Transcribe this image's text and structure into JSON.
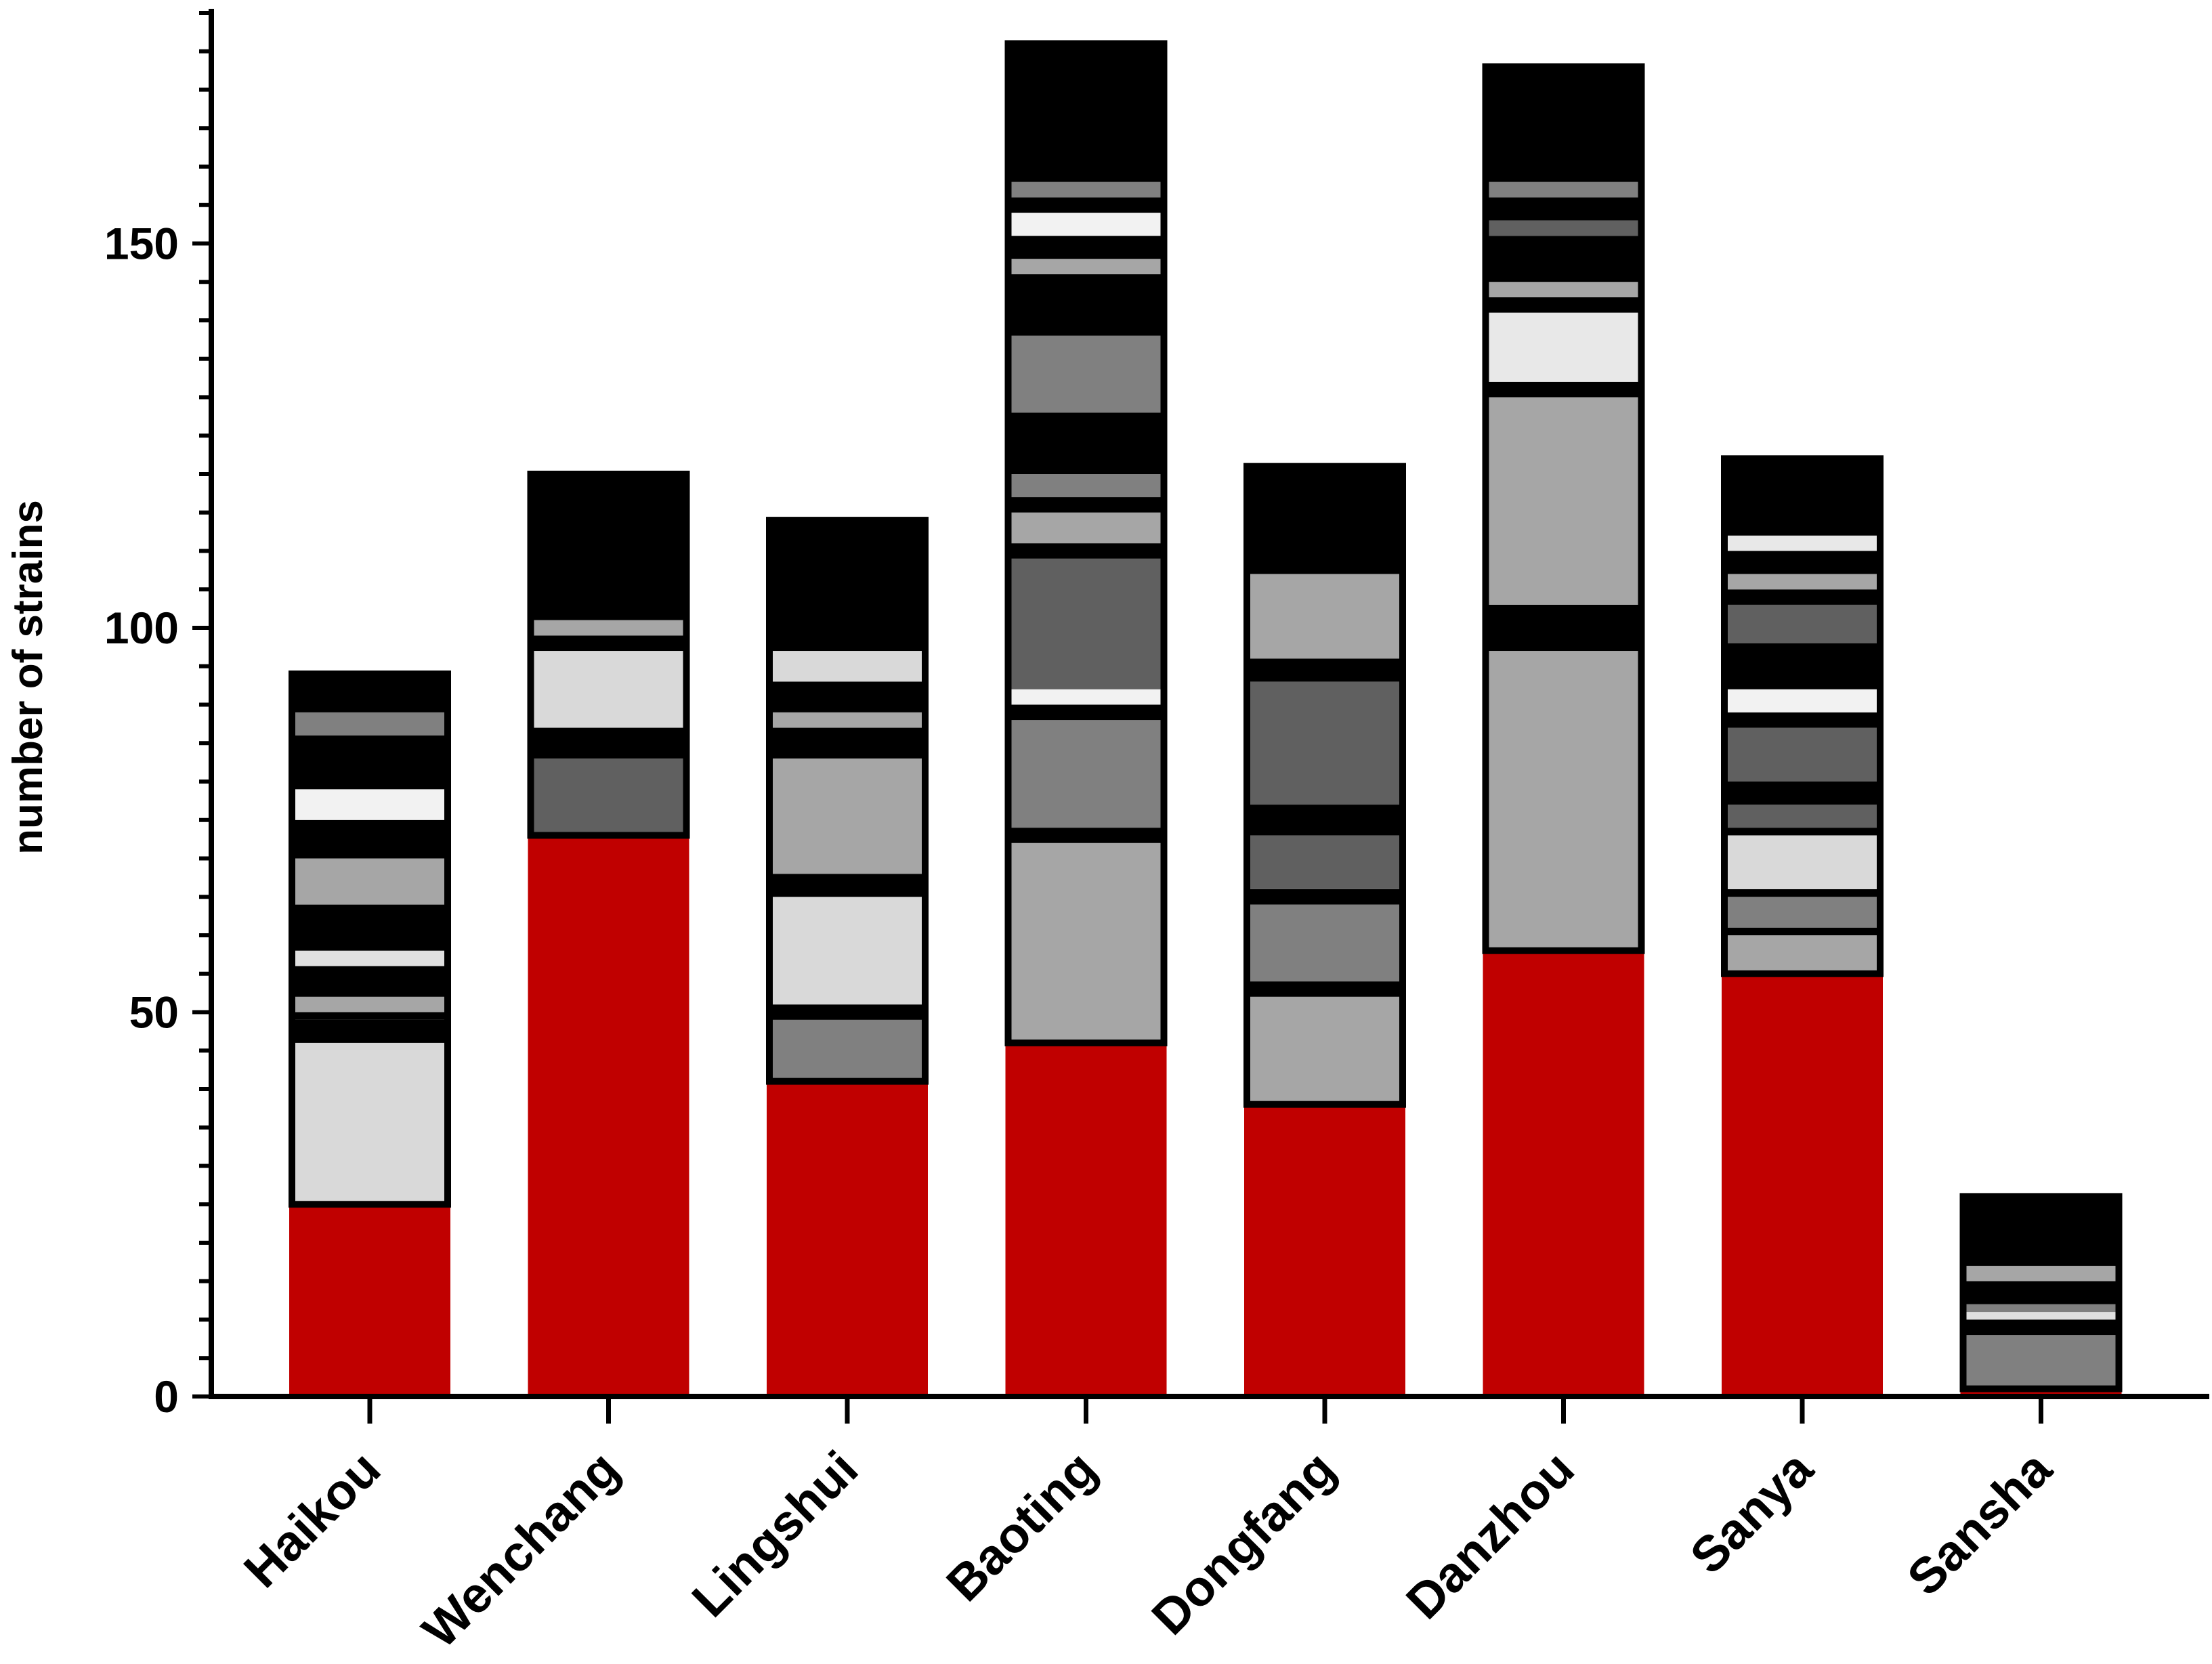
{
  "chart_data": {
    "type": "bar",
    "stacked": true,
    "title": "",
    "xlabel": "",
    "ylabel": "number of strains",
    "ylim": [
      0,
      180
    ],
    "yticks": [
      0,
      50,
      100,
      150
    ],
    "y_minor_step": 5,
    "categories": [
      "Haikou",
      "Wenchang",
      "Lingshui",
      "Baoting",
      "Dongfang",
      "Danzhou",
      "Sanya",
      "Sansha"
    ],
    "totals": [
      94,
      120,
      114,
      176,
      121,
      173,
      122,
      26
    ],
    "series": [
      {
        "name": "red",
        "color": "#c00000",
        "values": [
          25,
          73,
          41,
          46,
          38,
          58,
          55,
          1
        ]
      }
    ],
    "stack_segments": [
      [
        {
          "value": 25,
          "color": "#c00000"
        },
        {
          "value": 21,
          "color": "#d9d9d9"
        },
        {
          "value": 3,
          "color": "#000000"
        },
        {
          "value": 1,
          "color": "#000000"
        },
        {
          "value": 2,
          "color": "#a6a6a6"
        },
        {
          "value": 4,
          "color": "#000000"
        },
        {
          "value": 2,
          "color": "#e0e0e0"
        },
        {
          "value": 6,
          "color": "#000000"
        },
        {
          "value": 6,
          "color": "#a6a6a6"
        },
        {
          "value": 5,
          "color": "#000000"
        },
        {
          "value": 4,
          "color": "#f2f2f2"
        },
        {
          "value": 7,
          "color": "#000000"
        },
        {
          "value": 3,
          "color": "#808080"
        },
        {
          "value": 5,
          "color": "#000000"
        }
      ],
      [
        {
          "value": 73,
          "color": "#c00000"
        },
        {
          "value": 10,
          "color": "#606060"
        },
        {
          "value": 4,
          "color": "#000000"
        },
        {
          "value": 10,
          "color": "#d9d9d9"
        },
        {
          "value": 2,
          "color": "#000000"
        },
        {
          "value": 2,
          "color": "#a6a6a6"
        },
        {
          "value": 19,
          "color": "#000000"
        }
      ],
      [
        {
          "value": 41,
          "color": "#c00000"
        },
        {
          "value": 8,
          "color": "#808080"
        },
        {
          "value": 2,
          "color": "#000000"
        },
        {
          "value": 14,
          "color": "#d9d9d9"
        },
        {
          "value": 3,
          "color": "#000000"
        },
        {
          "value": 15,
          "color": "#a6a6a6"
        },
        {
          "value": 4,
          "color": "#000000"
        },
        {
          "value": 2,
          "color": "#a6a6a6"
        },
        {
          "value": 4,
          "color": "#000000"
        },
        {
          "value": 4,
          "color": "#d9d9d9"
        },
        {
          "value": 17,
          "color": "#000000"
        }
      ],
      [
        {
          "value": 46,
          "color": "#c00000"
        },
        {
          "value": 26,
          "color": "#a6a6a6"
        },
        {
          "value": 2,
          "color": "#000000"
        },
        {
          "value": 14,
          "color": "#808080"
        },
        {
          "value": 2,
          "color": "#000000"
        },
        {
          "value": 2,
          "color": "#f2f2f2"
        },
        {
          "value": 17,
          "color": "#606060"
        },
        {
          "value": 2,
          "color": "#000000"
        },
        {
          "value": 4,
          "color": "#a6a6a6"
        },
        {
          "value": 2,
          "color": "#000000"
        },
        {
          "value": 3,
          "color": "#808080"
        },
        {
          "value": 8,
          "color": "#000000"
        },
        {
          "value": 10,
          "color": "#808080"
        },
        {
          "value": 8,
          "color": "#000000"
        },
        {
          "value": 2,
          "color": "#a6a6a6"
        },
        {
          "value": 3,
          "color": "#000000"
        },
        {
          "value": 3,
          "color": "#f2f2f2"
        },
        {
          "value": 2,
          "color": "#000000"
        },
        {
          "value": 2,
          "color": "#808080"
        },
        {
          "value": 18,
          "color": "#000000"
        }
      ],
      [
        {
          "value": 38,
          "color": "#c00000"
        },
        {
          "value": 14,
          "color": "#a6a6a6"
        },
        {
          "value": 2,
          "color": "#000000"
        },
        {
          "value": 10,
          "color": "#808080"
        },
        {
          "value": 2,
          "color": "#000000"
        },
        {
          "value": 7,
          "color": "#606060"
        },
        {
          "value": 4,
          "color": "#000000"
        },
        {
          "value": 16,
          "color": "#606060"
        },
        {
          "value": 3,
          "color": "#000000"
        },
        {
          "value": 11,
          "color": "#a6a6a6"
        },
        {
          "value": 14,
          "color": "#000000"
        }
      ],
      [
        {
          "value": 58,
          "color": "#c00000"
        },
        {
          "value": 39,
          "color": "#a6a6a6"
        },
        {
          "value": 6,
          "color": "#000000"
        },
        {
          "value": 27,
          "color": "#a6a6a6"
        },
        {
          "value": 2,
          "color": "#000000"
        },
        {
          "value": 9,
          "color": "#e8e8e8"
        },
        {
          "value": 2,
          "color": "#000000"
        },
        {
          "value": 2,
          "color": "#a6a6a6"
        },
        {
          "value": 6,
          "color": "#000000"
        },
        {
          "value": 2,
          "color": "#606060"
        },
        {
          "value": 3,
          "color": "#000000"
        },
        {
          "value": 2,
          "color": "#808080"
        },
        {
          "value": 15,
          "color": "#000000"
        }
      ],
      [
        {
          "value": 55,
          "color": "#c00000"
        },
        {
          "value": 5,
          "color": "#a6a6a6"
        },
        {
          "value": 1,
          "color": "#000000"
        },
        {
          "value": 4,
          "color": "#808080"
        },
        {
          "value": 1,
          "color": "#000000"
        },
        {
          "value": 7,
          "color": "#d9d9d9"
        },
        {
          "value": 1,
          "color": "#000000"
        },
        {
          "value": 3,
          "color": "#606060"
        },
        {
          "value": 3,
          "color": "#000000"
        },
        {
          "value": 7,
          "color": "#606060"
        },
        {
          "value": 2,
          "color": "#000000"
        },
        {
          "value": 3,
          "color": "#f2f2f2"
        },
        {
          "value": 6,
          "color": "#000000"
        },
        {
          "value": 5,
          "color": "#606060"
        },
        {
          "value": 2,
          "color": "#000000"
        },
        {
          "value": 2,
          "color": "#a6a6a6"
        },
        {
          "value": 3,
          "color": "#000000"
        },
        {
          "value": 2,
          "color": "#e8e8e8"
        },
        {
          "value": 10,
          "color": "#000000"
        }
      ],
      [
        {
          "value": 1,
          "color": "#c00000"
        },
        {
          "value": 7,
          "color": "#808080"
        },
        {
          "value": 2,
          "color": "#000000"
        },
        {
          "value": 1,
          "color": "#e0e0e0"
        },
        {
          "value": 1,
          "color": "#808080"
        },
        {
          "value": 3,
          "color": "#000000"
        },
        {
          "value": 2,
          "color": "#a6a6a6"
        },
        {
          "value": 9,
          "color": "#000000"
        }
      ]
    ]
  }
}
